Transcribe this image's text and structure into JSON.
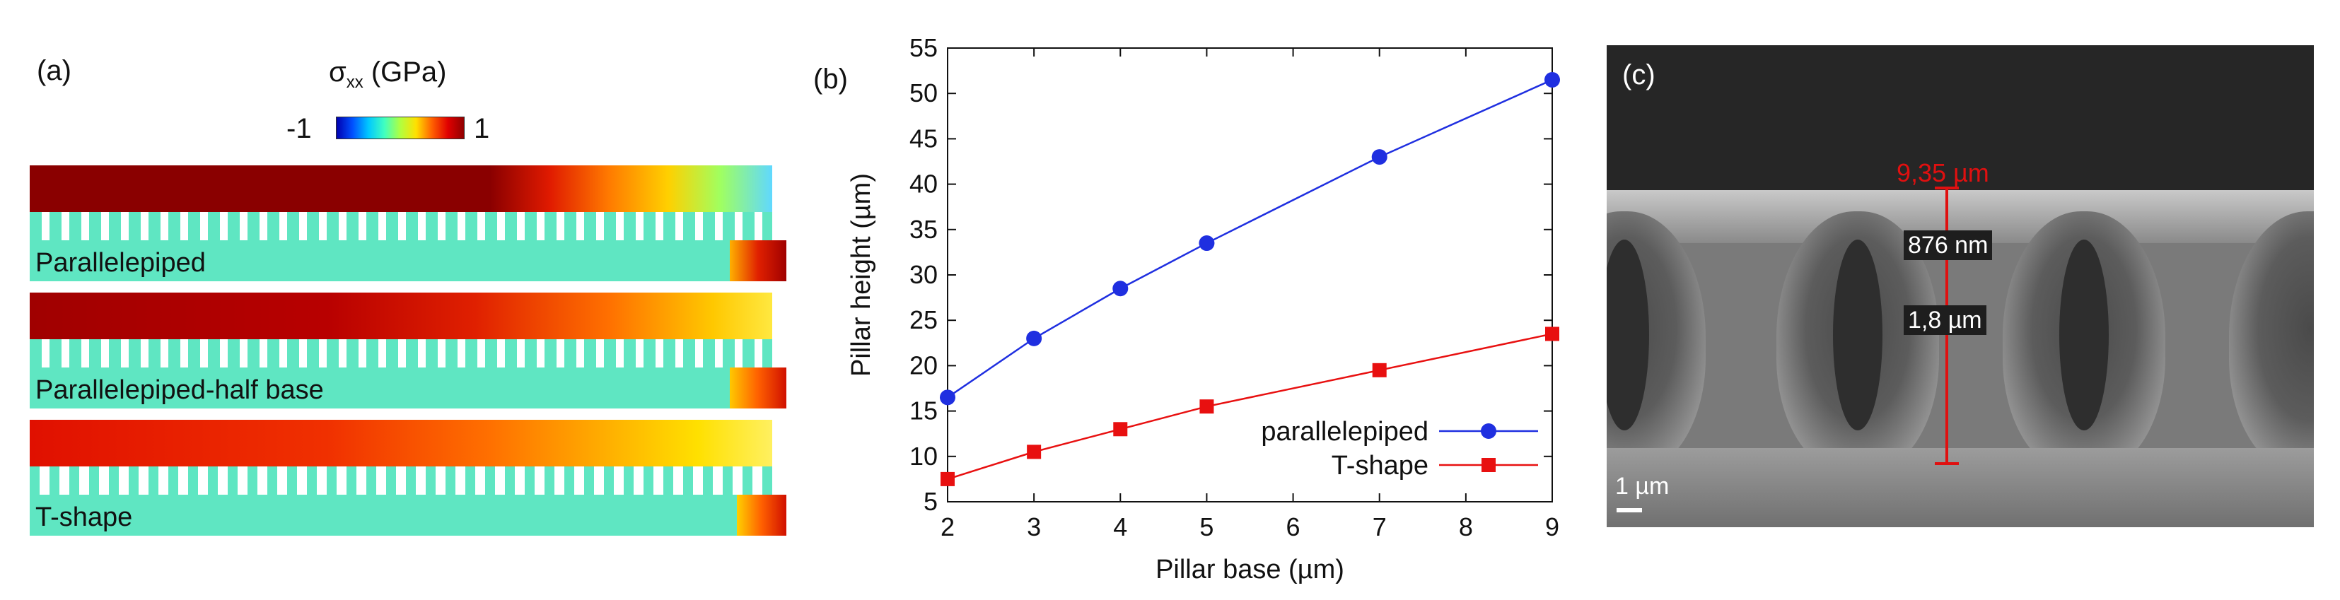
{
  "panel_a": {
    "label": "(a)",
    "colorbar": {
      "symbol": "σ",
      "subscript": "xx",
      "unit": "(GPa)",
      "min_label": "-1",
      "max_label": "1"
    },
    "simulations": [
      {
        "label": "Parallelepiped"
      },
      {
        "label": "Parallelepiped-half base"
      },
      {
        "label": "T-shape"
      }
    ]
  },
  "panel_b": {
    "label": "(b)"
  },
  "chart_data": {
    "type": "line",
    "title": "",
    "xlabel": "Pillar base (µm)",
    "ylabel": "Pillar height (µm)",
    "xlim": [
      2,
      9
    ],
    "ylim": [
      5,
      55
    ],
    "xticks": [
      2,
      3,
      4,
      5,
      6,
      7,
      8,
      9
    ],
    "yticks": [
      5,
      10,
      15,
      20,
      25,
      30,
      35,
      40,
      45,
      50,
      55
    ],
    "legend_position": "bottom-right",
    "series": [
      {
        "name": "parallelepiped",
        "color": "#1f2fe0",
        "marker": "circle",
        "x": [
          2,
          3,
          4,
          5,
          7,
          9
        ],
        "y": [
          16.5,
          23,
          28.5,
          33.5,
          43,
          51.5
        ]
      },
      {
        "name": "T-shape",
        "color": "#e81010",
        "marker": "square",
        "x": [
          2,
          3,
          4,
          5,
          7,
          9
        ],
        "y": [
          7.5,
          10.5,
          13,
          15.5,
          19.5,
          23.5
        ]
      }
    ]
  },
  "panel_c": {
    "label": "(c)",
    "height_label": "9,35 µm",
    "neck_label": "876 nm",
    "base_label": "1,8 µm",
    "scale_label": "1 µm"
  }
}
